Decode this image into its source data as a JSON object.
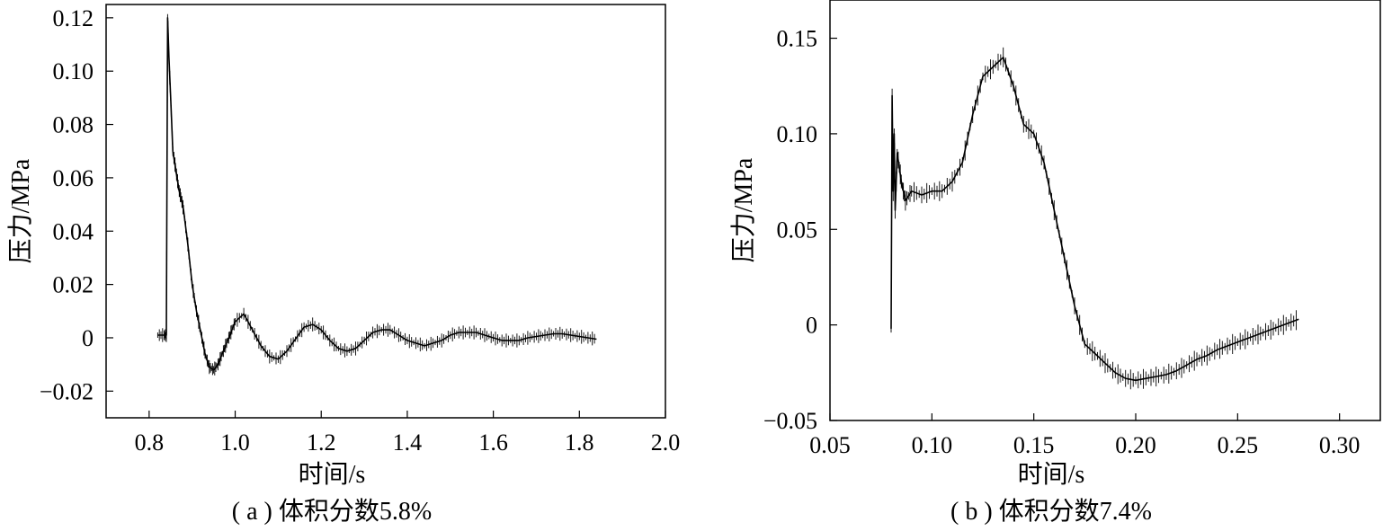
{
  "chart_data": [
    {
      "type": "line",
      "caption": "( a ) 体积分数5.8%",
      "xlabel": "时间/s",
      "ylabel": "压力/MPa",
      "xlim": [
        0.7,
        2.0
      ],
      "ylim": [
        -0.03,
        0.125
      ],
      "xticks": [
        0.8,
        1.0,
        1.2,
        1.4,
        1.6,
        1.8,
        2.0
      ],
      "xtick_labels": [
        "0.8",
        "1.0",
        "1.2",
        "1.4",
        "1.6",
        "1.8",
        "2.0"
      ],
      "yticks": [
        -0.02,
        0,
        0.02,
        0.04,
        0.06,
        0.08,
        0.1,
        0.12
      ],
      "ytick_labels": [
        "−0.02",
        "0",
        "0.02",
        "0.04",
        "0.06",
        "0.08",
        "0.10",
        "0.12"
      ],
      "grid": false,
      "series": [
        {
          "x": [
            0.82,
            0.835,
            0.84,
            0.843,
            0.846,
            0.85,
            0.855,
            0.86,
            0.865,
            0.87,
            0.875,
            0.88,
            0.89,
            0.9,
            0.91,
            0.92,
            0.93,
            0.94,
            0.95,
            0.96,
            0.97,
            0.98,
            0.99,
            1.0,
            1.02,
            1.04,
            1.06,
            1.08,
            1.1,
            1.12,
            1.14,
            1.16,
            1.18,
            1.2,
            1.22,
            1.24,
            1.26,
            1.28,
            1.3,
            1.32,
            1.34,
            1.36,
            1.38,
            1.4,
            1.42,
            1.44,
            1.46,
            1.48,
            1.5,
            1.52,
            1.54,
            1.56,
            1.58,
            1.6,
            1.62,
            1.64,
            1.66,
            1.68,
            1.7,
            1.72,
            1.74,
            1.76,
            1.78,
            1.8,
            1.82,
            1.84
          ],
          "y": [
            0.001,
            0.001,
            0.001,
            0.12,
            0.105,
            0.09,
            0.07,
            0.065,
            0.06,
            0.055,
            0.052,
            0.048,
            0.035,
            0.02,
            0.01,
            0.002,
            -0.006,
            -0.011,
            -0.012,
            -0.01,
            -0.006,
            -0.002,
            0.002,
            0.006,
            0.009,
            0.003,
            -0.003,
            -0.007,
            -0.008,
            -0.005,
            -0.0005,
            0.004,
            0.005,
            0.003,
            -0.001,
            -0.004,
            -0.005,
            -0.004,
            -0.001,
            0.002,
            0.003,
            0.003,
            0.001,
            -0.001,
            -0.002,
            -0.003,
            -0.002,
            -0.001,
            0.001,
            0.002,
            0.002,
            0.002,
            0.001,
            0.0,
            -0.001,
            -0.001,
            -0.001,
            0.0,
            0.0005,
            0.001,
            0.0015,
            0.0015,
            0.001,
            0.0005,
            0.0,
            -0.0005
          ]
        }
      ]
    },
    {
      "type": "line",
      "caption": "( b ) 体积分数7.4%",
      "xlabel": "时间/s",
      "ylabel": "压力/MPa",
      "xlim": [
        0.05,
        0.32
      ],
      "ylim": [
        -0.05,
        0.17
      ],
      "xticks": [
        0.05,
        0.1,
        0.15,
        0.2,
        0.25,
        0.3
      ],
      "xtick_labels": [
        "0.05",
        "0.10",
        "0.15",
        "0.20",
        "0.25",
        "0.30"
      ],
      "yticks": [
        -0.05,
        0,
        0.05,
        0.1,
        0.15
      ],
      "ytick_labels": [
        "−0.05",
        "0",
        "0.05",
        "0.10",
        "0.15"
      ],
      "grid": false,
      "series": [
        {
          "x": [
            0.08,
            0.0805,
            0.081,
            0.0815,
            0.082,
            0.083,
            0.085,
            0.087,
            0.09,
            0.095,
            0.1,
            0.105,
            0.11,
            0.115,
            0.12,
            0.125,
            0.13,
            0.135,
            0.14,
            0.145,
            0.15,
            0.155,
            0.16,
            0.165,
            0.17,
            0.175,
            0.18,
            0.185,
            0.19,
            0.195,
            0.2,
            0.205,
            0.21,
            0.215,
            0.22,
            0.225,
            0.23,
            0.235,
            0.24,
            0.245,
            0.25,
            0.255,
            0.26,
            0.265,
            0.27,
            0.275,
            0.28
          ],
          "y": [
            -0.002,
            0.12,
            0.07,
            0.1,
            0.06,
            0.09,
            0.075,
            0.065,
            0.07,
            0.068,
            0.07,
            0.07,
            0.075,
            0.085,
            0.11,
            0.13,
            0.135,
            0.14,
            0.125,
            0.105,
            0.1,
            0.085,
            0.06,
            0.035,
            0.01,
            -0.01,
            -0.015,
            -0.02,
            -0.025,
            -0.028,
            -0.029,
            -0.028,
            -0.027,
            -0.026,
            -0.024,
            -0.021,
            -0.018,
            -0.016,
            -0.013,
            -0.011,
            -0.009,
            -0.007,
            -0.005,
            -0.003,
            -0.001,
            0.001,
            0.003
          ]
        }
      ]
    }
  ]
}
